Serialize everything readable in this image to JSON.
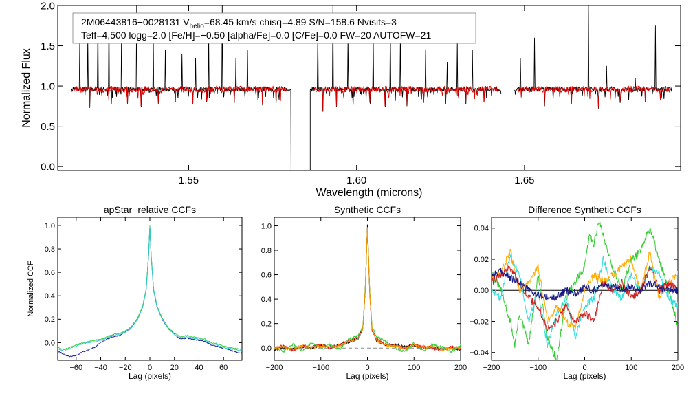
{
  "chart_data": [
    {
      "type": "line",
      "name": "spectrum",
      "title": "",
      "xlabel": "Wavelength (microns)",
      "ylabel": "Normalized Flux",
      "xlim": [
        1.511,
        1.6965
      ],
      "ylim": [
        -0.05,
        2.0
      ],
      "xticks": [
        1.55,
        1.6,
        1.65
      ],
      "xtick_labels": [
        "1.55",
        "1.60",
        "1.65"
      ],
      "yticks": [
        0.0,
        0.5,
        1.0,
        1.5,
        2.0
      ],
      "ytick_labels": [
        "0.0",
        "0.5",
        "1.0",
        "1.5",
        "2.0"
      ],
      "legend_line1_prefix": "2M06443816−0028131  V",
      "legend_line1_sub": "helio",
      "legend_line1_suffix": "=68.45 km/s  chisq=4.89  S/N=158.6  Nvisits=3",
      "legend_line2": "Teff=4,500 logg=2.0 [Fe/H]=−0.50 [alpha/Fe]=0.0 [C/Fe]=0.0 FW=20 AUTOFW=21",
      "colors": {
        "observed": "#000000",
        "model": "#dd0000"
      },
      "chips": [
        [
          1.515,
          1.5805
        ],
        [
          1.5862,
          1.6431
        ],
        [
          1.647,
          1.694
        ]
      ],
      "model_chips": [
        [
          1.516,
          1.5795
        ],
        [
          1.587,
          1.6425
        ],
        [
          1.648,
          1.6935
        ]
      ],
      "continuum": 0.96,
      "edge_drops": [
        1.5152,
        1.5804,
        1.5864
      ],
      "emission_spikes": [
        [
          1.5175,
          1.55
        ],
        [
          1.52,
          1.6
        ],
        [
          1.523,
          1.85
        ],
        [
          1.5262,
          2.0
        ],
        [
          1.53,
          1.7
        ],
        [
          1.5345,
          2.0
        ],
        [
          1.5395,
          1.6
        ],
        [
          1.543,
          1.45
        ],
        [
          1.548,
          1.4
        ],
        [
          1.552,
          1.35
        ],
        [
          1.556,
          1.7
        ],
        [
          1.56,
          2.0
        ],
        [
          1.564,
          1.35
        ],
        [
          1.5675,
          1.45
        ],
        [
          1.5885,
          1.7
        ],
        [
          1.593,
          2.0
        ],
        [
          1.5975,
          1.6
        ],
        [
          1.605,
          1.65
        ],
        [
          1.61,
          1.8
        ],
        [
          1.613,
          1.6
        ],
        [
          1.6205,
          1.45
        ],
        [
          1.627,
          1.3
        ],
        [
          1.63,
          1.55
        ],
        [
          1.6345,
          1.45
        ],
        [
          1.6488,
          1.35
        ],
        [
          1.653,
          1.6
        ],
        [
          1.669,
          2.0
        ],
        [
          1.6745,
          1.25
        ],
        [
          1.683,
          1.1
        ],
        [
          1.689,
          1.75
        ]
      ],
      "absorption_lines": [
        [
          1.5205,
          0.73
        ],
        [
          1.527,
          0.78
        ],
        [
          1.5318,
          0.78
        ],
        [
          1.5358,
          0.74
        ],
        [
          1.541,
          0.78
        ],
        [
          1.546,
          0.8
        ],
        [
          1.5512,
          0.77
        ],
        [
          1.5553,
          0.8
        ],
        [
          1.5636,
          0.79
        ],
        [
          1.572,
          0.76
        ],
        [
          1.576,
          0.79
        ],
        [
          1.59,
          0.68
        ],
        [
          1.594,
          0.74
        ],
        [
          1.599,
          0.76
        ],
        [
          1.604,
          0.78
        ],
        [
          1.6085,
          0.74
        ],
        [
          1.615,
          0.75
        ],
        [
          1.62,
          0.79
        ],
        [
          1.6265,
          0.78
        ],
        [
          1.6325,
          0.77
        ],
        [
          1.638,
          0.8
        ],
        [
          1.656,
          0.75
        ],
        [
          1.664,
          0.77
        ],
        [
          1.672,
          0.72
        ],
        [
          1.6785,
          0.79
        ],
        [
          1.686,
          0.8
        ]
      ]
    },
    {
      "type": "line",
      "name": "apstar-ccf",
      "title": "apStar−relative CCFs",
      "xlabel": "Lag (pixels)",
      "ylabel": "Normalized CCF",
      "xlim": [
        -75,
        75
      ],
      "ylim": [
        -0.15,
        1.07
      ],
      "xticks": [
        -60,
        -40,
        -20,
        0,
        20,
        40,
        60
      ],
      "xtick_labels": [
        "−60",
        "−40",
        "−20",
        "0",
        "20",
        "40",
        "60"
      ],
      "yticks": [
        0.0,
        0.2,
        0.4,
        0.6,
        0.8,
        1.0
      ],
      "ytick_labels": [
        "0.0",
        "0.2",
        "0.4",
        "0.6",
        "0.8",
        "1.0"
      ],
      "series": [
        {
          "name": "ccf-1",
          "color": "#1a1aa6",
          "x": [
            -75,
            -70,
            -65,
            -60,
            -55,
            -50,
            -45,
            -40,
            -35,
            -30,
            -25,
            -20,
            -15,
            -10,
            -6,
            -3,
            -1,
            0,
            1,
            3,
            6,
            10,
            15,
            20,
            25,
            30,
            35,
            40,
            45,
            50,
            55,
            60,
            65,
            70,
            75
          ],
          "y": [
            -0.07,
            -0.1,
            -0.12,
            -0.11,
            -0.08,
            -0.06,
            -0.04,
            0.0,
            0.03,
            0.05,
            0.06,
            0.09,
            0.13,
            0.2,
            0.3,
            0.45,
            0.75,
            0.99,
            0.75,
            0.45,
            0.3,
            0.2,
            0.12,
            0.07,
            0.03,
            0.04,
            0.03,
            0.02,
            0.01,
            -0.02,
            -0.03,
            -0.05,
            -0.06,
            -0.08,
            -0.09
          ]
        },
        {
          "name": "ccf-2",
          "color": "#44cc44",
          "x": [
            -75,
            -70,
            -65,
            -60,
            -55,
            -50,
            -45,
            -40,
            -35,
            -30,
            -25,
            -20,
            -15,
            -10,
            -6,
            -3,
            -1,
            0,
            1,
            3,
            6,
            10,
            15,
            20,
            25,
            30,
            35,
            40,
            45,
            50,
            55,
            60,
            65,
            70,
            75
          ],
          "y": [
            -0.04,
            -0.06,
            -0.04,
            -0.02,
            0.0,
            0.01,
            0.02,
            0.03,
            0.05,
            0.07,
            0.08,
            0.1,
            0.14,
            0.21,
            0.31,
            0.46,
            0.76,
            1.0,
            0.76,
            0.46,
            0.31,
            0.21,
            0.13,
            0.08,
            0.05,
            0.06,
            0.05,
            0.04,
            0.03,
            0.0,
            -0.01,
            -0.03,
            -0.04,
            -0.05,
            -0.06
          ]
        },
        {
          "name": "ccf-3",
          "color": "#33cccc",
          "x": [
            -75,
            -70,
            -65,
            -60,
            -55,
            -50,
            -45,
            -40,
            -35,
            -30,
            -25,
            -20,
            -15,
            -10,
            -6,
            -3,
            -1,
            0,
            1,
            3,
            6,
            10,
            15,
            20,
            25,
            30,
            35,
            40,
            45,
            50,
            55,
            60,
            65,
            70,
            75
          ],
          "y": [
            -0.05,
            -0.07,
            -0.05,
            -0.03,
            -0.01,
            0.0,
            0.01,
            0.02,
            0.04,
            0.06,
            0.07,
            0.09,
            0.13,
            0.2,
            0.3,
            0.45,
            0.75,
            0.99,
            0.75,
            0.45,
            0.3,
            0.2,
            0.12,
            0.07,
            0.04,
            0.05,
            0.04,
            0.03,
            0.02,
            -0.01,
            -0.02,
            -0.04,
            -0.05,
            -0.06,
            -0.07
          ]
        }
      ]
    },
    {
      "type": "line",
      "name": "synthetic-ccf",
      "title": "Synthetic CCFs",
      "xlabel": "Lag (pixels)",
      "ylabel": "",
      "xlim": [
        -200,
        200
      ],
      "ylim": [
        -0.1,
        1.07
      ],
      "xticks": [
        -200,
        -100,
        0,
        100,
        200
      ],
      "xtick_labels": [
        "−200",
        "−100",
        "0",
        "100",
        "200"
      ],
      "yticks": [
        0.0,
        0.2,
        0.4,
        0.6,
        0.8,
        1.0
      ],
      "ytick_labels": [
        "0.0",
        "0.2",
        "0.4",
        "0.6",
        "0.8",
        "1.0"
      ],
      "zero_line": 0.0,
      "series": [
        {
          "name": "ccf-black",
          "color": "#000000",
          "x": [
            -200,
            -180,
            -160,
            -140,
            -120,
            -100,
            -80,
            -60,
            -40,
            -20,
            -10,
            -5,
            0,
            5,
            10,
            20,
            40,
            60,
            80,
            100,
            120,
            140,
            160,
            180,
            200
          ],
          "y": [
            -0.01,
            0.0,
            -0.01,
            0.01,
            0.0,
            0.02,
            0.01,
            0.03,
            0.05,
            0.08,
            0.15,
            0.45,
            1.0,
            0.45,
            0.15,
            0.06,
            0.02,
            0.03,
            0.01,
            0.02,
            0.0,
            0.01,
            -0.01,
            0.0,
            -0.01
          ]
        },
        {
          "name": "ccf-red",
          "color": "#dd2222",
          "x": [
            -200,
            -180,
            -160,
            -140,
            -120,
            -100,
            -80,
            -60,
            -40,
            -20,
            -10,
            -5,
            0,
            5,
            10,
            20,
            40,
            60,
            80,
            100,
            120,
            140,
            160,
            180,
            200
          ],
          "y": [
            0.0,
            0.02,
            -0.02,
            0.02,
            0.01,
            0.03,
            0.0,
            0.02,
            0.06,
            0.09,
            0.16,
            0.46,
            0.99,
            0.44,
            0.14,
            0.07,
            0.03,
            0.02,
            0.0,
            0.03,
            0.01,
            0.0,
            -0.02,
            0.01,
            0.0
          ]
        },
        {
          "name": "ccf-green",
          "color": "#33cc33",
          "x": [
            -200,
            -180,
            -160,
            -140,
            -120,
            -100,
            -80,
            -60,
            -40,
            -20,
            -10,
            -5,
            0,
            5,
            10,
            20,
            40,
            60,
            80,
            100,
            120,
            140,
            160,
            180,
            200
          ],
          "y": [
            0.01,
            -0.03,
            0.03,
            -0.02,
            0.04,
            0.0,
            0.03,
            -0.01,
            0.07,
            0.1,
            0.17,
            0.47,
            0.98,
            0.46,
            0.17,
            0.09,
            0.05,
            0.0,
            -0.03,
            0.04,
            -0.02,
            0.03,
            0.01,
            -0.03,
            0.02
          ]
        },
        {
          "name": "ccf-orange",
          "color": "#ff9900",
          "x": [
            -200,
            -180,
            -160,
            -140,
            -120,
            -100,
            -80,
            -60,
            -40,
            -20,
            -10,
            -5,
            0,
            5,
            10,
            20,
            40,
            60,
            80,
            100,
            120,
            140,
            160,
            180,
            200
          ],
          "y": [
            0.0,
            0.01,
            -0.01,
            0.02,
            0.0,
            0.02,
            0.01,
            0.02,
            0.05,
            0.08,
            0.15,
            0.45,
            0.99,
            0.45,
            0.15,
            0.06,
            0.02,
            0.02,
            0.0,
            0.02,
            0.01,
            0.01,
            -0.01,
            0.0,
            0.0
          ]
        }
      ]
    },
    {
      "type": "line",
      "name": "difference-ccf",
      "title": "Difference Synthetic CCFs",
      "xlabel": "Lag (pixels)",
      "ylabel": "",
      "xlim": [
        -200,
        200
      ],
      "ylim": [
        -0.045,
        0.047
      ],
      "xticks": [
        -200,
        -100,
        0,
        100,
        200
      ],
      "xtick_labels": [
        "−200",
        "−100",
        "0",
        "100",
        "200"
      ],
      "yticks": [
        -0.04,
        -0.02,
        0.0,
        0.02,
        0.04
      ],
      "ytick_labels": [
        "−0.04",
        "−0.02",
        "0.00",
        "0.02",
        "0.04"
      ],
      "zero_line": 0.0,
      "series": [
        {
          "name": "diff-green",
          "color": "#33cc33",
          "x": [
            -200,
            -180,
            -160,
            -150,
            -140,
            -120,
            -100,
            -80,
            -60,
            -40,
            -20,
            0,
            10,
            20,
            30,
            40,
            60,
            80,
            100,
            120,
            140,
            160,
            180,
            200
          ],
          "y": [
            0.012,
            0.0,
            -0.02,
            -0.035,
            -0.015,
            -0.035,
            0.01,
            -0.03,
            -0.045,
            -0.005,
            0.005,
            0.015,
            0.035,
            0.03,
            0.045,
            0.035,
            0.015,
            0.0,
            0.02,
            0.025,
            0.04,
            0.02,
            0.0,
            -0.022
          ]
        },
        {
          "name": "diff-cyan",
          "color": "#33dddd",
          "x": [
            -200,
            -180,
            -160,
            -140,
            -120,
            -100,
            -80,
            -60,
            -40,
            -20,
            0,
            20,
            40,
            60,
            80,
            100,
            120,
            140,
            160,
            180,
            200
          ],
          "y": [
            0.0,
            -0.005,
            0.022,
            0.01,
            -0.02,
            0.0,
            -0.035,
            -0.015,
            -0.005,
            -0.03,
            -0.01,
            -0.005,
            0.02,
            0.0,
            -0.005,
            0.01,
            0.0,
            0.015,
            0.01,
            -0.005,
            -0.01
          ]
        },
        {
          "name": "diff-orange",
          "color": "#ffaa00",
          "x": [
            -200,
            -180,
            -160,
            -140,
            -120,
            -100,
            -80,
            -60,
            -40,
            -20,
            0,
            20,
            40,
            60,
            80,
            100,
            120,
            140,
            160,
            180,
            200
          ],
          "y": [
            0.01,
            0.01,
            0.025,
            0.0,
            0.005,
            0.015,
            -0.02,
            -0.01,
            -0.02,
            -0.025,
            0.0,
            0.01,
            0.005,
            0.01,
            0.015,
            0.02,
            0.0,
            0.025,
            -0.005,
            0.005,
            0.01
          ]
        },
        {
          "name": "diff-red",
          "color": "#cc2222",
          "x": [
            -200,
            -180,
            -160,
            -140,
            -120,
            -100,
            -80,
            -60,
            -40,
            -20,
            0,
            20,
            40,
            60,
            80,
            100,
            120,
            140,
            160,
            180,
            200
          ],
          "y": [
            0.005,
            0.01,
            0.015,
            0.005,
            -0.005,
            -0.01,
            -0.025,
            -0.02,
            -0.01,
            -0.02,
            -0.015,
            -0.02,
            0.005,
            0.0,
            0.005,
            -0.005,
            0.0,
            0.015,
            0.0,
            0.005,
            0.0
          ]
        },
        {
          "name": "diff-navy",
          "color": "#1a1a88",
          "x": [
            -200,
            -180,
            -160,
            -140,
            -120,
            -100,
            -80,
            -60,
            -40,
            -20,
            0,
            20,
            40,
            60,
            80,
            100,
            120,
            140,
            160,
            180,
            200
          ],
          "y": [
            0.01,
            0.012,
            0.008,
            0.005,
            0.0,
            -0.003,
            -0.005,
            -0.004,
            0.0,
            -0.002,
            0.002,
            0.0,
            0.004,
            0.002,
            0.001,
            0.003,
            0.0,
            0.005,
            0.002,
            0.0,
            0.0
          ]
        }
      ]
    }
  ]
}
